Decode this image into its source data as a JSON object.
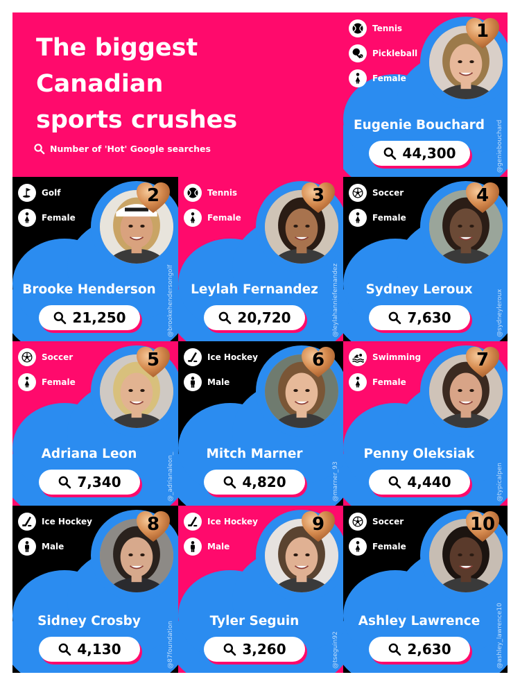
{
  "title": [
    "The biggest",
    "Canadian",
    "sports crushes"
  ],
  "subtitle": "Number of 'Hot' Google searches",
  "colors": {
    "pink": "#ff0a6c",
    "blue": "#2b8cf0",
    "black": "#000000",
    "heart": "#d58a4e"
  },
  "athletes": [
    {
      "rank": "1",
      "name": "Eugenie Bouchard",
      "searches": "44,300",
      "handle": "@geniebouchard",
      "tags": [
        {
          "icon": "tennis-ball-icon",
          "label": "Tennis"
        },
        {
          "icon": "pickleball-icon",
          "label": "Pickleball"
        },
        {
          "icon": "female-icon",
          "label": "Female"
        }
      ],
      "searches_value": 44300
    },
    {
      "rank": "2",
      "name": "Brooke Henderson",
      "searches": "21,250",
      "handle": "@brookehendersongolf",
      "tags": [
        {
          "icon": "golf-flag-icon",
          "label": "Golf"
        },
        {
          "icon": "female-icon",
          "label": "Female"
        }
      ],
      "searches_value": 21250
    },
    {
      "rank": "3",
      "name": "Leylah Fernandez",
      "searches": "20,720",
      "handle": "@leylahanniefernandez",
      "tags": [
        {
          "icon": "tennis-ball-icon",
          "label": "Tennis"
        },
        {
          "icon": "female-icon",
          "label": "Female"
        }
      ],
      "searches_value": 20720
    },
    {
      "rank": "4",
      "name": "Sydney Leroux",
      "searches": "7,630",
      "handle": "@sydneyleroux",
      "tags": [
        {
          "icon": "soccer-ball-icon",
          "label": "Soccer"
        },
        {
          "icon": "female-icon",
          "label": "Female"
        }
      ],
      "searches_value": 7630
    },
    {
      "rank": "5",
      "name": "Adriana Leon",
      "searches": "7,340",
      "handle": "@_adrianaleon_",
      "tags": [
        {
          "icon": "soccer-ball-icon",
          "label": "Soccer"
        },
        {
          "icon": "female-icon",
          "label": "Female"
        }
      ],
      "searches_value": 7340
    },
    {
      "rank": "6",
      "name": "Mitch Marner",
      "searches": "4,820",
      "handle": "@marner_93",
      "tags": [
        {
          "icon": "hockey-stick-icon",
          "label": "Ice Hockey"
        },
        {
          "icon": "male-icon",
          "label": "Male"
        }
      ],
      "searches_value": 4820
    },
    {
      "rank": "7",
      "name": "Penny Oleksiak",
      "searches": "4,440",
      "handle": "@typicalpen",
      "tags": [
        {
          "icon": "swimmer-icon",
          "label": "Swimming"
        },
        {
          "icon": "female-icon",
          "label": "Female"
        }
      ],
      "searches_value": 4440
    },
    {
      "rank": "8",
      "name": "Sidney Crosby",
      "searches": "4,130",
      "handle": "@87foundation",
      "tags": [
        {
          "icon": "hockey-stick-icon",
          "label": "Ice Hockey"
        },
        {
          "icon": "male-icon",
          "label": "Male"
        }
      ],
      "searches_value": 4130
    },
    {
      "rank": "9",
      "name": "Tyler Seguin",
      "searches": "3,260",
      "handle": "@tseguin92",
      "tags": [
        {
          "icon": "hockey-stick-icon",
          "label": "Ice Hockey"
        },
        {
          "icon": "male-icon",
          "label": "Male"
        }
      ],
      "searches_value": 3260
    },
    {
      "rank": "10",
      "name": "Ashley Lawrence",
      "searches": "2,630",
      "handle": "@ashley_lawrence10",
      "tags": [
        {
          "icon": "soccer-ball-icon",
          "label": "Soccer"
        },
        {
          "icon": "female-icon",
          "label": "Female"
        }
      ],
      "searches_value": 2630
    }
  ]
}
